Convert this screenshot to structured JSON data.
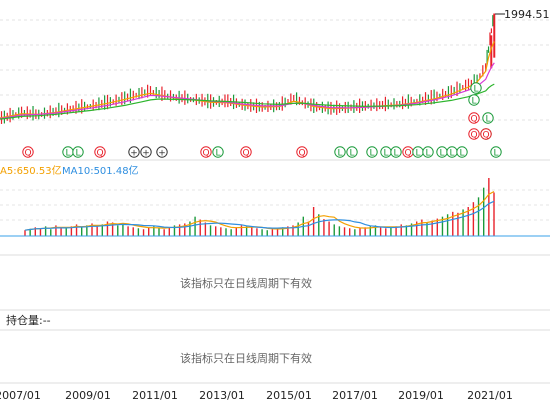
{
  "chart_data": {
    "type": "line",
    "price": {
      "max_label": "1994.51",
      "x_range": [
        "2006-01",
        "2021-06"
      ],
      "y_range": [
        0,
        2100
      ],
      "candles": [
        {
          "t": "2006-01",
          "v": 60
        },
        {
          "t": "2006-07",
          "v": 75
        },
        {
          "t": "2007-01",
          "v": 95
        },
        {
          "t": "2007-07",
          "v": 130
        },
        {
          "t": "2008-01",
          "v": 115
        },
        {
          "t": "2008-07",
          "v": 140
        },
        {
          "t": "2009-01",
          "v": 165
        },
        {
          "t": "2009-07",
          "v": 185
        },
        {
          "t": "2010-01",
          "v": 215
        },
        {
          "t": "2010-07",
          "v": 260
        },
        {
          "t": "2011-01",
          "v": 320
        },
        {
          "t": "2011-04",
          "v": 345
        },
        {
          "t": "2011-07",
          "v": 310
        },
        {
          "t": "2012-01",
          "v": 270
        },
        {
          "t": "2012-07",
          "v": 250
        },
        {
          "t": "2013-01",
          "v": 220
        },
        {
          "t": "2013-07",
          "v": 230
        },
        {
          "t": "2014-01",
          "v": 190
        },
        {
          "t": "2014-07",
          "v": 175
        },
        {
          "t": "2015-01",
          "v": 185
        },
        {
          "t": "2015-06",
          "v": 265
        },
        {
          "t": "2015-09",
          "v": 220
        },
        {
          "t": "2016-01",
          "v": 180
        },
        {
          "t": "2016-07",
          "v": 160
        },
        {
          "t": "2017-01",
          "v": 170
        },
        {
          "t": "2017-07",
          "v": 185
        },
        {
          "t": "2018-01",
          "v": 195
        },
        {
          "t": "2018-07",
          "v": 205
        },
        {
          "t": "2019-01",
          "v": 235
        },
        {
          "t": "2019-07",
          "v": 270
        },
        {
          "t": "2020-01",
          "v": 330
        },
        {
          "t": "2020-07",
          "v": 430
        },
        {
          "t": "2020-10",
          "v": 500
        },
        {
          "t": "2021-01",
          "v": 700
        },
        {
          "t": "2021-02",
          "v": 1050
        },
        {
          "t": "2021-03",
          "v": 1500
        },
        {
          "t": "2021-04",
          "v": 1994.51
        }
      ],
      "series": [
        {
          "color": "#f3a000",
          "values": [
            70,
            85,
            105,
            130,
            125,
            140,
            165,
            190,
            220,
            260,
            310,
            330,
            310,
            275,
            255,
            230,
            225,
            200,
            185,
            190,
            240,
            225,
            190,
            170,
            175,
            185,
            195,
            205,
            230,
            265,
            320,
            410,
            480,
            650,
            900,
            1100,
            1250
          ]
        },
        {
          "color": "#d63ad6",
          "values": [
            75,
            85,
            100,
            120,
            125,
            135,
            155,
            175,
            200,
            235,
            280,
            305,
            300,
            280,
            260,
            240,
            230,
            210,
            195,
            195,
            220,
            220,
            200,
            180,
            178,
            183,
            192,
            202,
            222,
            255,
            300,
            370,
            420,
            520,
            620,
            720,
            800
          ]
        },
        {
          "color": "#2db52d",
          "values": [
            80,
            85,
            95,
            110,
            115,
            125,
            140,
            155,
            175,
            200,
            235,
            255,
            265,
            260,
            255,
            245,
            238,
            228,
            215,
            210,
            220,
            222,
            212,
            200,
            195,
            192,
            194,
            198,
            208,
            225,
            250,
            290,
            320,
            360,
            400,
            430,
            450
          ]
        }
      ]
    },
    "markers": [
      "Q",
      "L",
      "L",
      "Q",
      "+",
      "+",
      "+",
      "Q",
      "L",
      "Q",
      "Q",
      "L",
      "L",
      "L",
      "L",
      "L",
      "Q",
      "L",
      "L",
      "L",
      "L",
      "L",
      "Q",
      "L",
      "L"
    ],
    "volume": {
      "ma5_label": "A5:650.53亿",
      "ma10_label": "MA10:501.48亿",
      "bars": [
        12,
        15,
        18,
        16,
        20,
        14,
        22,
        18,
        16,
        20,
        24,
        18,
        22,
        26,
        20,
        24,
        30,
        28,
        22,
        26,
        20,
        18,
        16,
        14,
        18,
        20,
        16,
        14,
        18,
        22,
        24,
        26,
        30,
        40,
        34,
        28,
        22,
        20,
        18,
        16,
        14,
        18,
        22,
        20,
        18,
        16,
        14,
        12,
        14,
        16,
        18,
        20,
        22,
        28,
        40,
        30,
        60,
        45,
        35,
        30,
        24,
        20,
        18,
        16,
        14,
        16,
        18,
        20,
        22,
        18,
        16,
        18,
        20,
        24,
        22,
        26,
        30,
        34,
        28,
        32,
        36,
        40,
        45,
        50,
        48,
        55,
        60,
        70,
        80,
        100,
        120,
        90
      ]
    },
    "panel_message": "该指标只在日线周期下有效",
    "open_interest_label": "持仓量:--",
    "x_ticks": [
      "2007/01",
      "2009/01",
      "2011/01",
      "2013/01",
      "2015/01",
      "2017/01",
      "2019/01",
      "2021/01"
    ]
  }
}
